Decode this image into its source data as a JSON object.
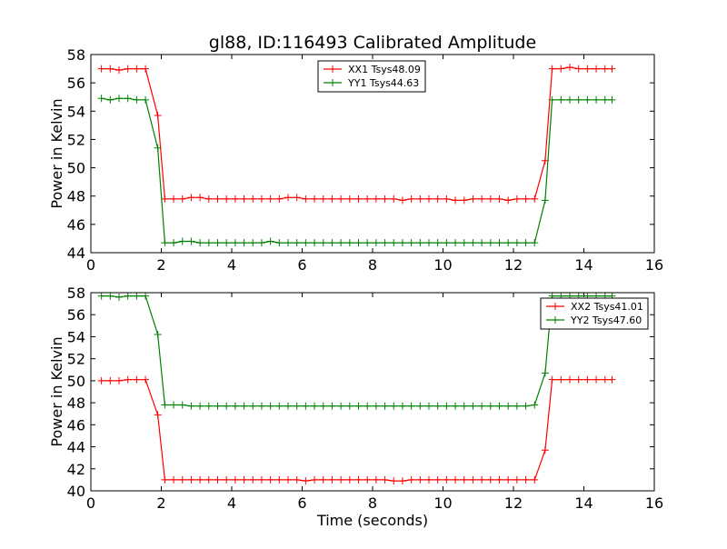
{
  "figure": {
    "title": "gl88, ID:116493 Calibrated Amplitude",
    "xlabel": "Time (seconds)"
  },
  "chart_data": [
    {
      "type": "line",
      "ylabel": "Power in Kelvin",
      "xlim": [
        0,
        16
      ],
      "ylim": [
        44,
        58
      ],
      "xticks": [
        "0",
        "2",
        "4",
        "6",
        "8",
        "10",
        "12",
        "14",
        "16"
      ],
      "yticks": [
        "44",
        "46",
        "48",
        "50",
        "52",
        "54",
        "56",
        "58"
      ],
      "legend_position": "top-center",
      "x": [
        0.3,
        0.55,
        0.8,
        1.05,
        1.3,
        1.55,
        1.9,
        2.1,
        2.35,
        2.6,
        2.85,
        3.1,
        3.35,
        3.6,
        3.85,
        4.1,
        4.35,
        4.6,
        4.85,
        5.1,
        5.35,
        5.6,
        5.85,
        6.1,
        6.35,
        6.6,
        6.85,
        7.1,
        7.35,
        7.6,
        7.85,
        8.1,
        8.35,
        8.6,
        8.85,
        9.1,
        9.35,
        9.6,
        9.85,
        10.1,
        10.35,
        10.6,
        10.85,
        11.1,
        11.35,
        11.6,
        11.85,
        12.1,
        12.35,
        12.6,
        12.9,
        13.1,
        13.35,
        13.6,
        13.85,
        14.1,
        14.35,
        14.6,
        14.8
      ],
      "series": [
        {
          "name": "XX1 Tsys48.09",
          "color": "#ff0000",
          "values": [
            57.0,
            57.0,
            56.9,
            57.0,
            57.0,
            57.0,
            53.7,
            47.8,
            47.8,
            47.8,
            47.9,
            47.9,
            47.8,
            47.8,
            47.8,
            47.8,
            47.8,
            47.8,
            47.8,
            47.8,
            47.8,
            47.9,
            47.9,
            47.8,
            47.8,
            47.8,
            47.8,
            47.8,
            47.8,
            47.8,
            47.8,
            47.8,
            47.8,
            47.8,
            47.7,
            47.8,
            47.8,
            47.8,
            47.8,
            47.8,
            47.7,
            47.7,
            47.8,
            47.8,
            47.8,
            47.8,
            47.7,
            47.8,
            47.8,
            47.8,
            50.5,
            57.0,
            57.0,
            57.1,
            57.0,
            57.0,
            57.0,
            57.0,
            57.0
          ]
        },
        {
          "name": "YY1 Tsys44.63",
          "color": "#008000",
          "values": [
            54.9,
            54.8,
            54.9,
            54.9,
            54.8,
            54.8,
            51.4,
            44.7,
            44.7,
            44.8,
            44.8,
            44.7,
            44.7,
            44.7,
            44.7,
            44.7,
            44.7,
            44.7,
            44.7,
            44.8,
            44.7,
            44.7,
            44.7,
            44.7,
            44.7,
            44.7,
            44.7,
            44.7,
            44.7,
            44.7,
            44.7,
            44.7,
            44.7,
            44.7,
            44.7,
            44.7,
            44.7,
            44.7,
            44.7,
            44.7,
            44.7,
            44.7,
            44.7,
            44.7,
            44.7,
            44.7,
            44.7,
            44.7,
            44.7,
            44.7,
            47.7,
            54.8,
            54.8,
            54.8,
            54.8,
            54.8,
            54.8,
            54.8,
            54.8
          ]
        }
      ]
    },
    {
      "type": "line",
      "ylabel": "Power in Kelvin",
      "xlabel": "Time (seconds)",
      "xlim": [
        0,
        16
      ],
      "ylim": [
        40,
        58
      ],
      "xticks": [
        "0",
        "2",
        "4",
        "6",
        "8",
        "10",
        "12",
        "14",
        "16"
      ],
      "yticks": [
        "40",
        "42",
        "44",
        "46",
        "48",
        "50",
        "52",
        "54",
        "56",
        "58"
      ],
      "legend_position": "top-right",
      "x": [
        0.3,
        0.55,
        0.8,
        1.05,
        1.3,
        1.55,
        1.9,
        2.1,
        2.35,
        2.6,
        2.85,
        3.1,
        3.35,
        3.6,
        3.85,
        4.1,
        4.35,
        4.6,
        4.85,
        5.1,
        5.35,
        5.6,
        5.85,
        6.1,
        6.35,
        6.6,
        6.85,
        7.1,
        7.35,
        7.6,
        7.85,
        8.1,
        8.35,
        8.6,
        8.85,
        9.1,
        9.35,
        9.6,
        9.85,
        10.1,
        10.35,
        10.6,
        10.85,
        11.1,
        11.35,
        11.6,
        11.85,
        12.1,
        12.35,
        12.6,
        12.9,
        13.1,
        13.35,
        13.6,
        13.85,
        14.1,
        14.35,
        14.6,
        14.8
      ],
      "series": [
        {
          "name": "XX2 Tsys41.01",
          "color": "#ff0000",
          "values": [
            50.0,
            50.0,
            50.0,
            50.1,
            50.1,
            50.1,
            46.9,
            41.0,
            41.0,
            41.0,
            41.0,
            41.0,
            41.0,
            41.0,
            41.0,
            41.0,
            41.0,
            41.0,
            41.0,
            41.0,
            41.0,
            41.0,
            41.0,
            40.9,
            41.0,
            41.0,
            41.0,
            41.0,
            41.0,
            41.0,
            41.0,
            41.0,
            41.0,
            40.9,
            40.9,
            41.0,
            41.0,
            41.0,
            41.0,
            41.0,
            41.0,
            41.0,
            41.0,
            41.0,
            41.0,
            41.0,
            41.0,
            41.0,
            41.0,
            41.0,
            43.7,
            50.1,
            50.1,
            50.1,
            50.1,
            50.1,
            50.1,
            50.1,
            50.1
          ]
        },
        {
          "name": "YY2 Tsys47.60",
          "color": "#008000",
          "values": [
            57.7,
            57.7,
            57.6,
            57.7,
            57.7,
            57.7,
            54.2,
            47.8,
            47.8,
            47.8,
            47.7,
            47.7,
            47.7,
            47.7,
            47.7,
            47.7,
            47.7,
            47.7,
            47.7,
            47.7,
            47.7,
            47.7,
            47.7,
            47.7,
            47.7,
            47.7,
            47.7,
            47.7,
            47.7,
            47.7,
            47.7,
            47.7,
            47.7,
            47.7,
            47.7,
            47.7,
            47.7,
            47.7,
            47.7,
            47.7,
            47.7,
            47.7,
            47.7,
            47.7,
            47.7,
            47.7,
            47.7,
            47.7,
            47.7,
            47.8,
            50.7,
            57.7,
            57.7,
            57.7,
            57.7,
            57.7,
            57.7,
            57.7,
            57.7
          ]
        }
      ]
    }
  ]
}
